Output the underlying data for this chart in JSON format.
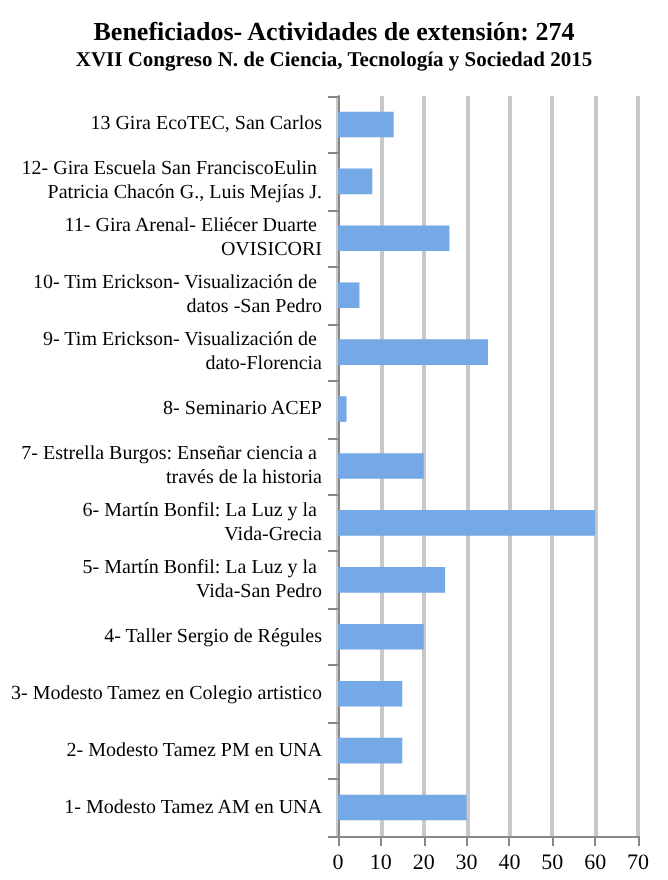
{
  "chart_data": {
    "type": "bar",
    "orientation": "horizontal",
    "title": "Beneficiados- Actividades de extensión: 274",
    "subtitle": "XVII Congreso N. de Ciencia, Tecnología y Sociedad 2015",
    "categories": [
      "13 Gira EcoTEC, San Carlos",
      "12- Gira Escuela San FranciscoEulin Patricia Chacón G., Luis Mejías J.",
      "11- Gira Arenal- Eliécer Duarte OVISICORI",
      "10- Tim Erickson- Visualización de datos -San Pedro",
      "9- Tim Erickson- Visualización de dato-Florencia",
      "8- Seminario ACEP",
      "7- Estrella Burgos: Enseñar ciencia a través de la historia",
      "6- Martín Bonfil: La Luz y la Vida-Grecia",
      "5- Martín Bonfil: La Luz y la Vida-San Pedro",
      "4- Taller Sergio de Régules",
      "3- Modesto Tamez en Colegio artistico",
      "2- Modesto Tamez PM en UNA",
      "1- Modesto Tamez AM en UNA"
    ],
    "values": [
      13,
      8,
      26,
      5,
      35,
      2,
      20,
      60,
      25,
      20,
      15,
      15,
      30
    ],
    "color": "#74a9e6",
    "xlim": [
      0,
      70
    ],
    "xticks": [
      0,
      10,
      20,
      30,
      40,
      50,
      60,
      70
    ],
    "grid": "x"
  }
}
